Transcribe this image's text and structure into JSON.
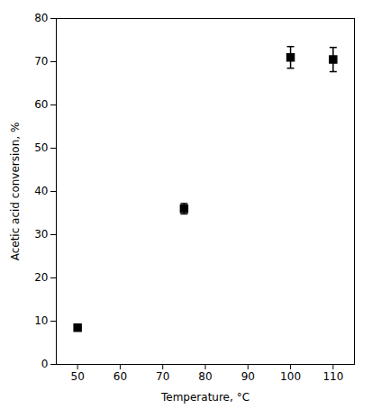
{
  "chart_data": {
    "type": "scatter",
    "x": [
      50,
      75,
      100,
      110
    ],
    "values": [
      8.5,
      36.0,
      71.0,
      70.5
    ],
    "yerr": [
      0.0,
      1.2,
      2.5,
      2.8
    ],
    "color": "black",
    "marker": "square",
    "xlabel": "Temperature, °C",
    "ylabel": "Acetic acid conversion, %",
    "xlim": [
      45,
      115
    ],
    "ylim": [
      0,
      80
    ],
    "xticks": [
      50,
      60,
      70,
      80,
      90,
      100,
      110
    ],
    "yticks": [
      0,
      10,
      20,
      30,
      40,
      50,
      60,
      70,
      80
    ],
    "grid": false
  }
}
